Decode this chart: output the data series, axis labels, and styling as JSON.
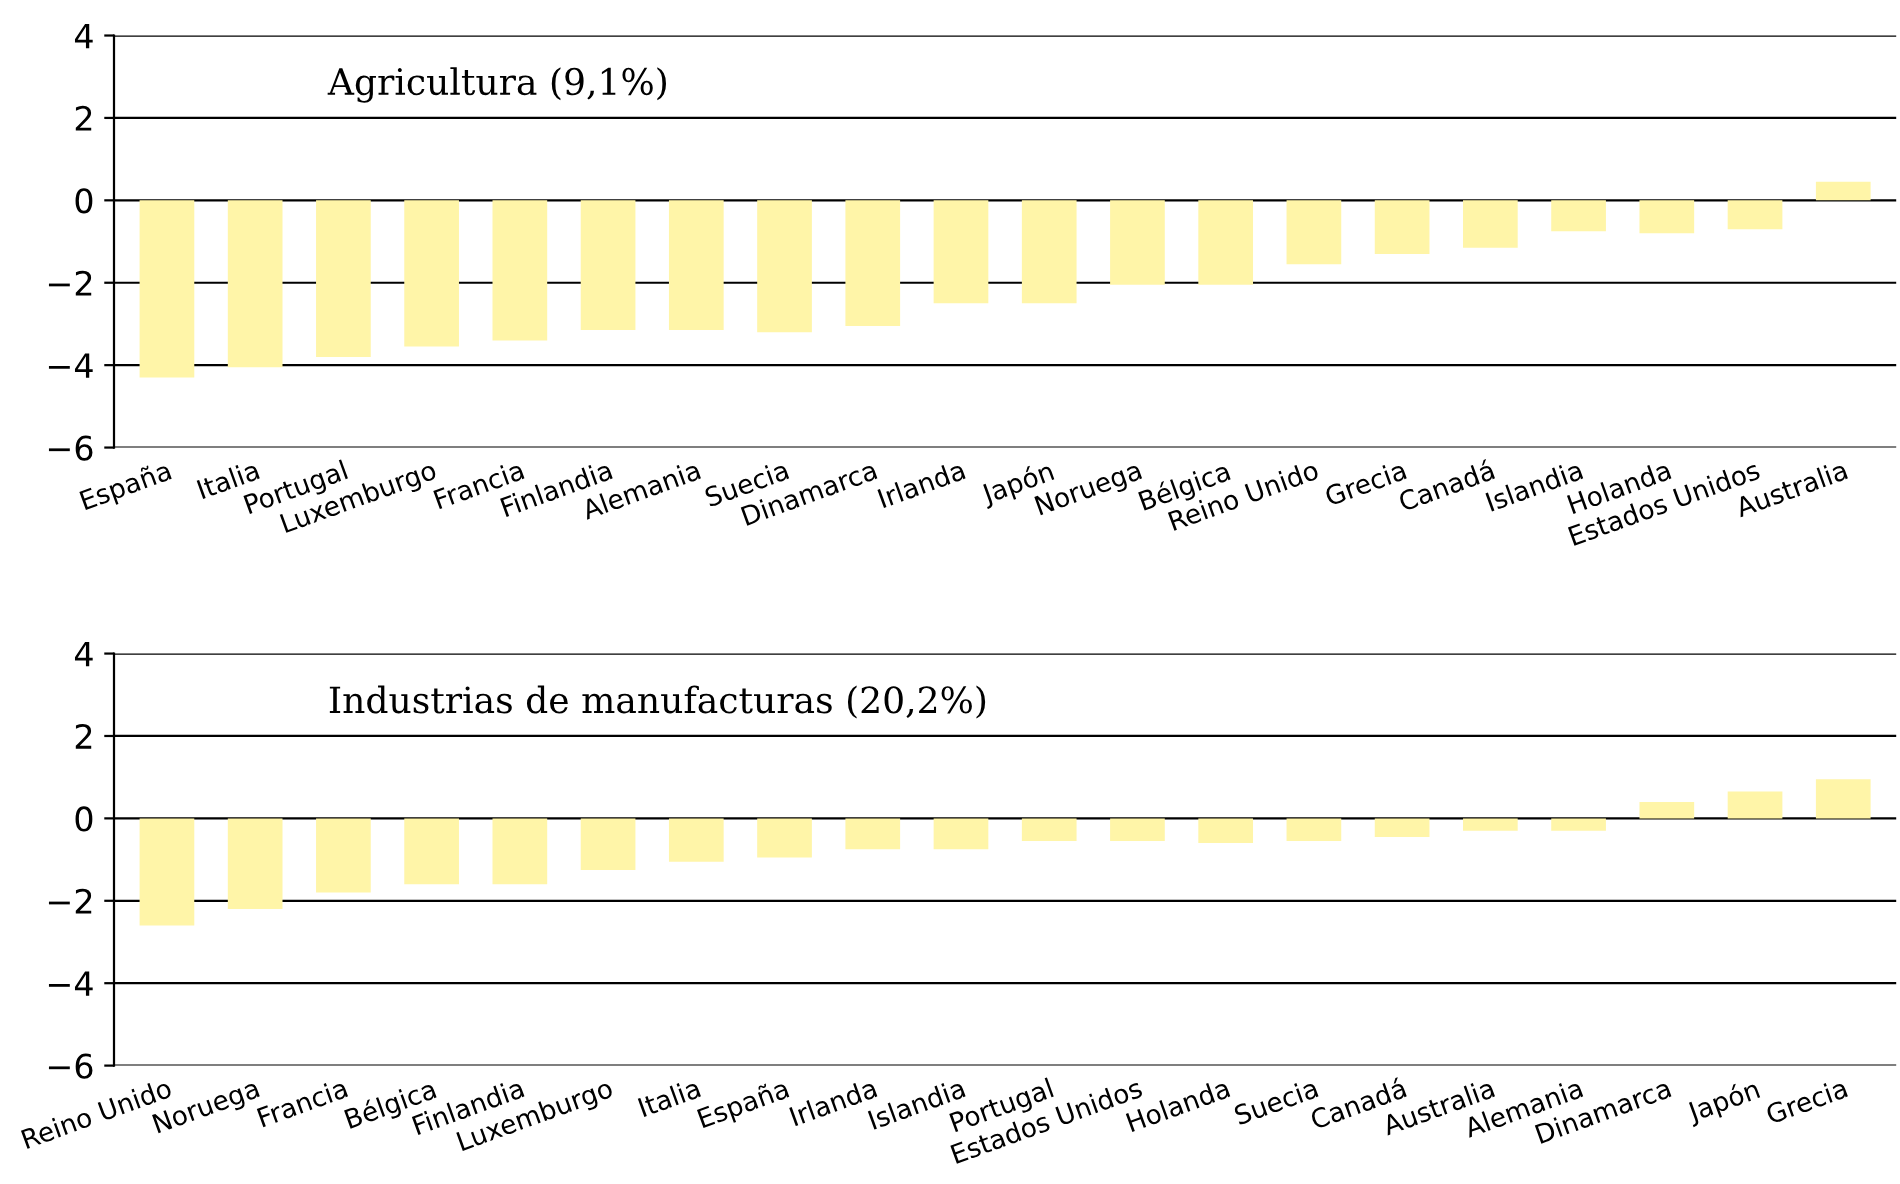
{
  "chart_data": [
    {
      "type": "bar",
      "title": "Agricultura (9,1%)",
      "categories": [
        "España",
        "Italia",
        "Portugal",
        "Luxemburgo",
        "Francia",
        "Finlandia",
        "Alemania",
        "Suecia",
        "Dinamarca",
        "Irlanda",
        "Japón",
        "Noruega",
        "Bélgica",
        "Reino Unido",
        "Grecia",
        "Canadá",
        "Islandia",
        "Holanda",
        "Estados Unidos",
        "Australia"
      ],
      "values": [
        -4.3,
        -4.05,
        -3.8,
        -3.55,
        -3.4,
        -3.15,
        -3.15,
        -3.2,
        -3.05,
        -2.5,
        -2.5,
        -2.05,
        -2.05,
        -1.55,
        -1.3,
        -1.15,
        -0.75,
        -0.8,
        -0.7,
        0.45
      ],
      "color": "#fff5a8",
      "ylim": [
        -6,
        4
      ],
      "yticks": [
        {
          "value": -6,
          "label": "−6"
        },
        {
          "value": -4,
          "label": "−4"
        },
        {
          "value": -2,
          "label": "−2"
        },
        0,
        2,
        4
      ],
      "grid": "y"
    },
    {
      "type": "bar",
      "title": "Industrias de manufacturas (20,2%)",
      "categories": [
        "Reino Unido",
        "Noruega",
        "Francia",
        "Bélgica",
        "Finlandia",
        "Luxemburgo",
        "Italia",
        "España",
        "Irlanda",
        "Islandia",
        "Portugal",
        "Estados Unidos",
        "Holanda",
        "Suecia",
        "Canadá",
        "Australia",
        "Alemania",
        "Dinamarca",
        "Japón",
        "Grecia"
      ],
      "values": [
        -2.6,
        -2.2,
        -1.8,
        -1.6,
        -1.6,
        -1.25,
        -1.05,
        -0.95,
        -0.75,
        -0.75,
        -0.55,
        -0.55,
        -0.6,
        -0.55,
        -0.45,
        -0.3,
        -0.3,
        0.4,
        0.65,
        0.95
      ],
      "color": "#fff5a8",
      "ylim": [
        -6,
        4
      ],
      "yticks": [
        {
          "value": -6,
          "label": "−6"
        },
        {
          "value": -4,
          "label": "−4"
        },
        {
          "value": -2,
          "label": "−2"
        },
        0,
        2,
        4
      ],
      "grid": "y"
    }
  ]
}
